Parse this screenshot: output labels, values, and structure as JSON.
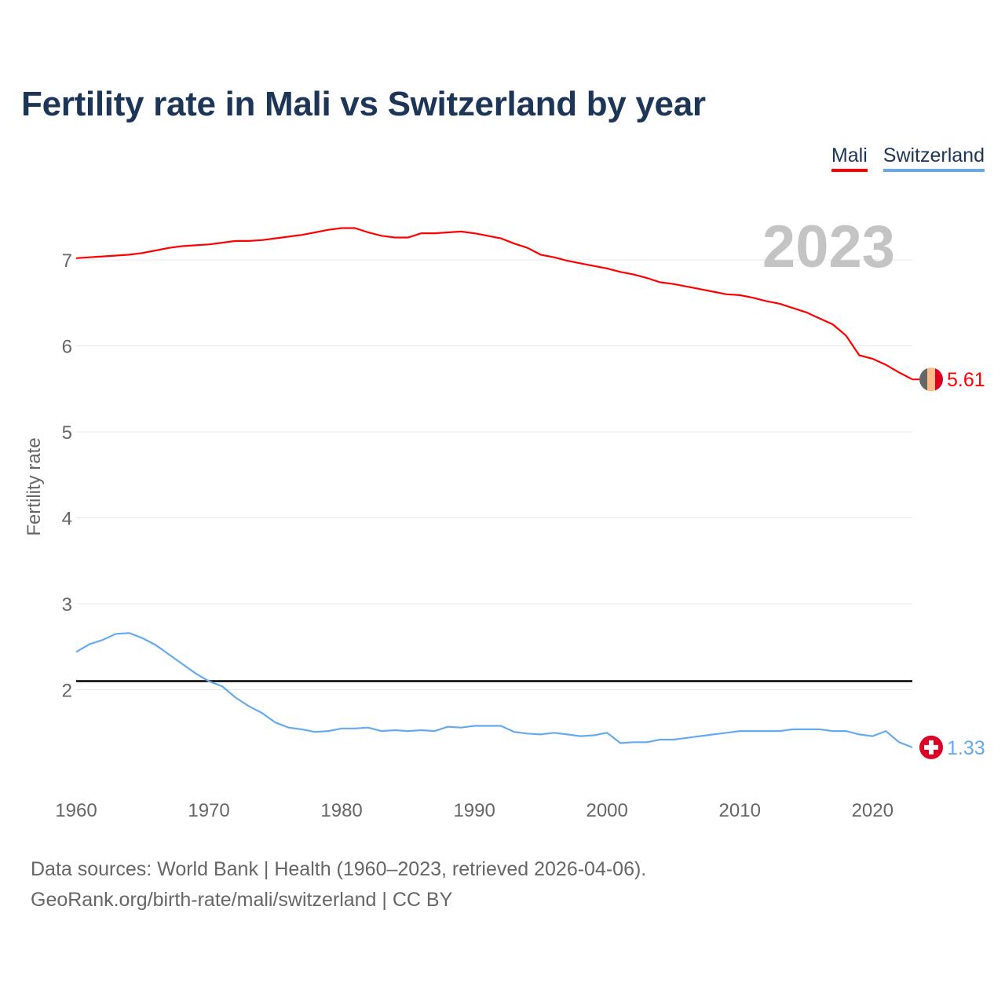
{
  "title": "Fertility rate in Mali vs Switzerland by year",
  "legend": [
    {
      "label": "Mali",
      "color": "#ff0000"
    },
    {
      "label": "Switzerland",
      "color": "#66aaee"
    }
  ],
  "year_label": "2023",
  "source_line1": "Data sources: World Bank | Health (1960–2023, retrieved 2026-04-06).",
  "source_line2": "GeoRank.org/birth-rate/mali/switzerland | CC BY",
  "chart_data": {
    "type": "line",
    "title": "Fertility rate in Mali vs Switzerland by year",
    "xlabel": "",
    "ylabel": "Fertility rate",
    "xlim": [
      1960,
      2023
    ],
    "ylim": [
      1.0,
      7.6
    ],
    "x_ticks": [
      1960,
      1970,
      1980,
      1990,
      2000,
      2010,
      2020
    ],
    "y_ticks": [
      2,
      3,
      4,
      5,
      6,
      7
    ],
    "grid": true,
    "legend_position": "top-right",
    "reference_line": {
      "value": 2.1,
      "color": "#000000"
    },
    "x": [
      1960,
      1961,
      1962,
      1963,
      1964,
      1965,
      1966,
      1967,
      1968,
      1969,
      1970,
      1971,
      1972,
      1973,
      1974,
      1975,
      1976,
      1977,
      1978,
      1979,
      1980,
      1981,
      1982,
      1983,
      1984,
      1985,
      1986,
      1987,
      1988,
      1989,
      1990,
      1991,
      1992,
      1993,
      1994,
      1995,
      1996,
      1997,
      1998,
      1999,
      2000,
      2001,
      2002,
      2003,
      2004,
      2005,
      2006,
      2007,
      2008,
      2009,
      2010,
      2011,
      2012,
      2013,
      2014,
      2015,
      2016,
      2017,
      2018,
      2019,
      2020,
      2021,
      2022,
      2023
    ],
    "series": [
      {
        "name": "Mali",
        "color": "#ff0000",
        "end_label": "5.61",
        "values": [
          7.02,
          7.03,
          7.04,
          7.05,
          7.06,
          7.08,
          7.11,
          7.14,
          7.16,
          7.17,
          7.18,
          7.2,
          7.22,
          7.22,
          7.23,
          7.25,
          7.27,
          7.29,
          7.32,
          7.35,
          7.37,
          7.37,
          7.32,
          7.28,
          7.26,
          7.26,
          7.31,
          7.31,
          7.32,
          7.33,
          7.31,
          7.28,
          7.25,
          7.19,
          7.14,
          7.06,
          7.03,
          6.99,
          6.96,
          6.93,
          6.9,
          6.86,
          6.83,
          6.79,
          6.74,
          6.72,
          6.69,
          6.66,
          6.63,
          6.6,
          6.59,
          6.56,
          6.52,
          6.49,
          6.44,
          6.39,
          6.32,
          6.25,
          6.12,
          5.89,
          5.85,
          5.78,
          5.69,
          5.61
        ]
      },
      {
        "name": "Switzerland",
        "color": "#66aaee",
        "end_label": "1.33",
        "values": [
          2.44,
          2.53,
          2.58,
          2.65,
          2.66,
          2.6,
          2.52,
          2.41,
          2.3,
          2.19,
          2.1,
          2.04,
          1.91,
          1.81,
          1.73,
          1.62,
          1.56,
          1.54,
          1.51,
          1.52,
          1.55,
          1.55,
          1.56,
          1.52,
          1.53,
          1.52,
          1.53,
          1.52,
          1.57,
          1.56,
          1.58,
          1.58,
          1.58,
          1.51,
          1.49,
          1.48,
          1.5,
          1.48,
          1.46,
          1.47,
          1.5,
          1.38,
          1.39,
          1.39,
          1.42,
          1.42,
          1.44,
          1.46,
          1.48,
          1.5,
          1.52,
          1.52,
          1.52,
          1.52,
          1.54,
          1.54,
          1.54,
          1.52,
          1.52,
          1.48,
          1.46,
          1.52,
          1.39,
          1.33
        ]
      }
    ]
  }
}
